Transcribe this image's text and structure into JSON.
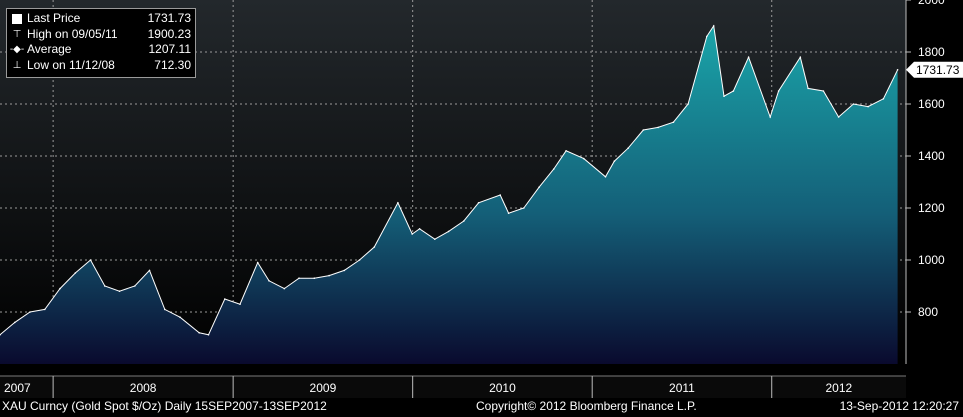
{
  "chart_data": {
    "type": "area",
    "title": "",
    "xlabel": "",
    "ylabel": "",
    "ylim": [
      600,
      2000
    ],
    "yticks": [
      800,
      1000,
      1200,
      1400,
      1600,
      1800,
      2000
    ],
    "x_labels": [
      "2007",
      "2008",
      "2009",
      "2010",
      "2011",
      "2012"
    ],
    "series": [
      {
        "name": "Last Price",
        "x": [
          "2007-09-15",
          "2007-10-15",
          "2007-11-15",
          "2007-12-15",
          "2008-01-15",
          "2008-02-15",
          "2008-03-17",
          "2008-04-15",
          "2008-05-15",
          "2008-06-15",
          "2008-07-15",
          "2008-08-15",
          "2008-09-15",
          "2008-10-24",
          "2008-11-12",
          "2008-12-15",
          "2009-01-15",
          "2009-02-20",
          "2009-03-15",
          "2009-04-15",
          "2009-05-15",
          "2009-06-15",
          "2009-07-15",
          "2009-08-15",
          "2009-09-15",
          "2009-10-15",
          "2009-12-02",
          "2009-12-31",
          "2010-01-15",
          "2010-02-15",
          "2010-03-15",
          "2010-04-15",
          "2010-05-15",
          "2010-06-28",
          "2010-07-15",
          "2010-08-15",
          "2010-09-15",
          "2010-10-15",
          "2010-11-09",
          "2010-12-15",
          "2011-01-28",
          "2011-02-15",
          "2011-03-15",
          "2011-04-15",
          "2011-05-15",
          "2011-06-15",
          "2011-07-15",
          "2011-08-22",
          "2011-09-05",
          "2011-09-26",
          "2011-10-15",
          "2011-11-15",
          "2011-12-29",
          "2012-01-15",
          "2012-02-28",
          "2012-03-15",
          "2012-04-15",
          "2012-05-16",
          "2012-06-15",
          "2012-07-15",
          "2012-08-15",
          "2012-09-13"
        ],
        "values": [
          712.3,
          760,
          800,
          810,
          890,
          950,
          1000,
          900,
          880,
          900,
          960,
          810,
          780,
          720,
          712.3,
          850,
          830,
          990,
          920,
          890,
          930,
          930,
          940,
          960,
          1000,
          1050,
          1220,
          1100,
          1120,
          1080,
          1110,
          1150,
          1220,
          1250,
          1180,
          1200,
          1280,
          1350,
          1420,
          1390,
          1320,
          1380,
          1430,
          1500,
          1510,
          1530,
          1600,
          1860,
          1900.23,
          1630,
          1650,
          1780,
          1550,
          1650,
          1780,
          1660,
          1650,
          1550,
          1600,
          1590,
          1620,
          1731.73
        ]
      }
    ],
    "legend": {
      "position": "top-left",
      "entries": [
        {
          "icon": "square-icon",
          "label": "Last Price",
          "value": "1731.73"
        },
        {
          "icon": "high-marker-icon",
          "label": "High on 09/05/11",
          "value": "1900.23"
        },
        {
          "icon": "average-line-icon",
          "label": "Average",
          "value": "1207.11"
        },
        {
          "icon": "low-marker-icon",
          "label": "Low on 11/12/08",
          "value": "712.30"
        }
      ]
    },
    "last_price_tag": "1731.73",
    "grid": true,
    "colors": {
      "background": "#000000",
      "plot_top": "#23282c",
      "plot_bottom": "#000000",
      "area_top": "#1aa3a8",
      "area_bottom": "#0a0a2e",
      "line": "#ffffff",
      "grid": "#9a9a9a",
      "axis_panel": "#0a0a0a"
    }
  },
  "footer": {
    "left": "XAU Curncy (Gold Spot  $/Oz)  Daily 15SEP2007-13SEP2012",
    "center": "Copyright© 2012 Bloomberg Finance L.P.",
    "right": "13-Sep-2012 12:20:27"
  }
}
